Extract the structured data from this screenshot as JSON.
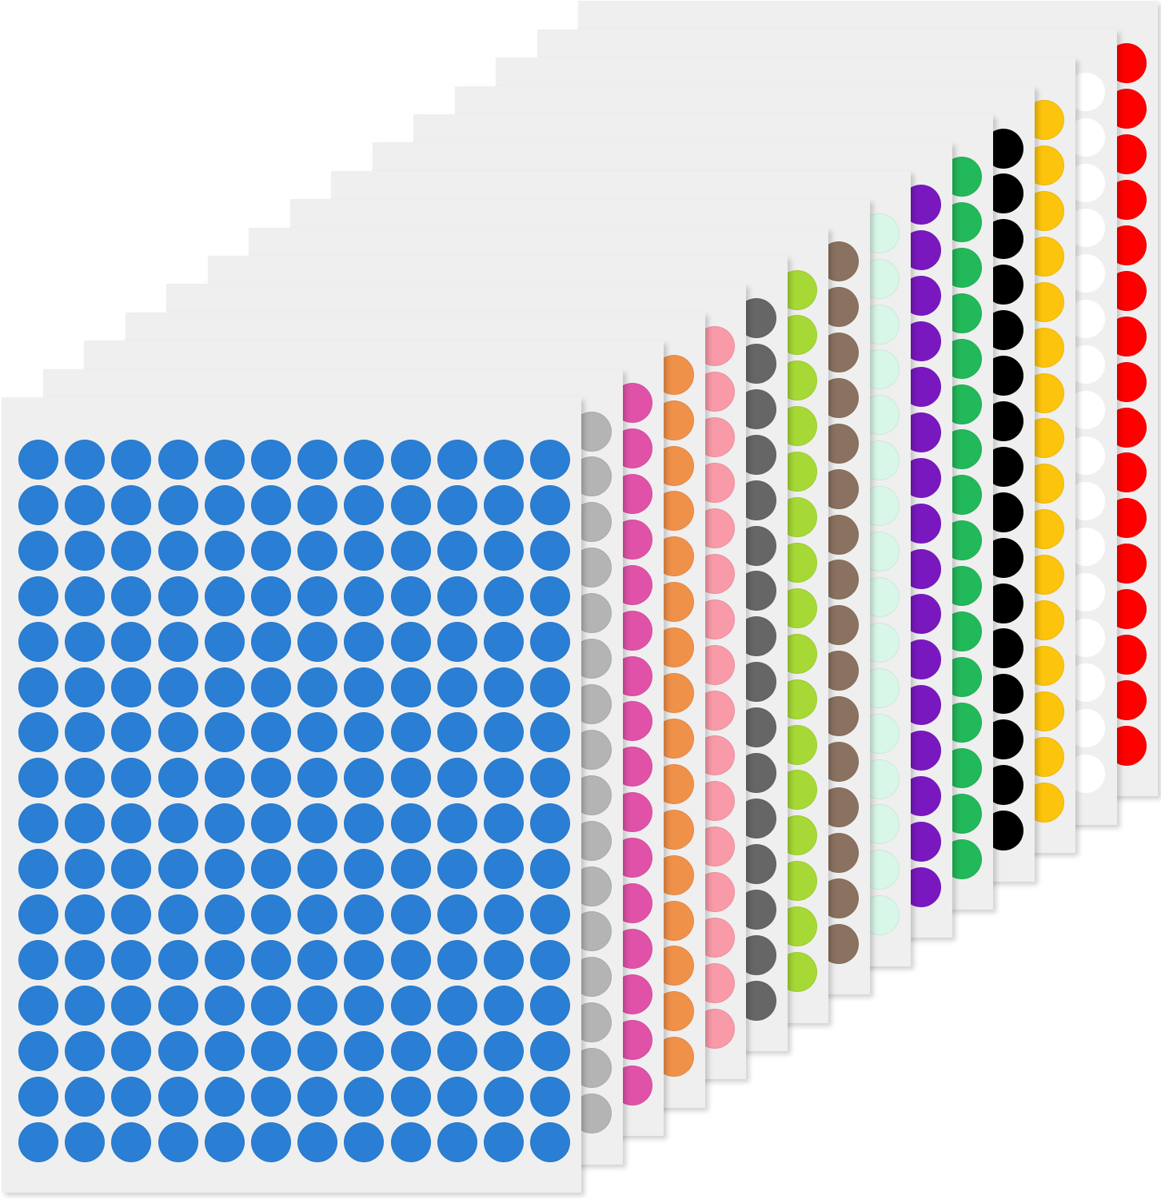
{
  "product": {
    "sheet_color": "#efefef",
    "dots_per_sheet": {
      "columns": 12,
      "rows": 16
    },
    "sheets_back_to_front": [
      {
        "color_name": "red",
        "color": "#fe0000"
      },
      {
        "color_name": "white",
        "color": "#ffffff"
      },
      {
        "color_name": "yellow",
        "color": "#fcc40c"
      },
      {
        "color_name": "black",
        "color": "#000000"
      },
      {
        "color_name": "green",
        "color": "#22b95a"
      },
      {
        "color_name": "purple",
        "color": "#7a18c0"
      },
      {
        "color_name": "mint",
        "color": "#d8f7e8"
      },
      {
        "color_name": "brown",
        "color": "#8b7260"
      },
      {
        "color_name": "yellow-green",
        "color": "#a6d936"
      },
      {
        "color_name": "dark-gray",
        "color": "#666666"
      },
      {
        "color_name": "light-pink",
        "color": "#f99aa8"
      },
      {
        "color_name": "orange",
        "color": "#f0914a"
      },
      {
        "color_name": "hot-pink",
        "color": "#e052a8"
      },
      {
        "color_name": "light-gray",
        "color": "#b4b4b4"
      },
      {
        "color_name": "blue",
        "color": "#2a7fd4"
      }
    ]
  }
}
